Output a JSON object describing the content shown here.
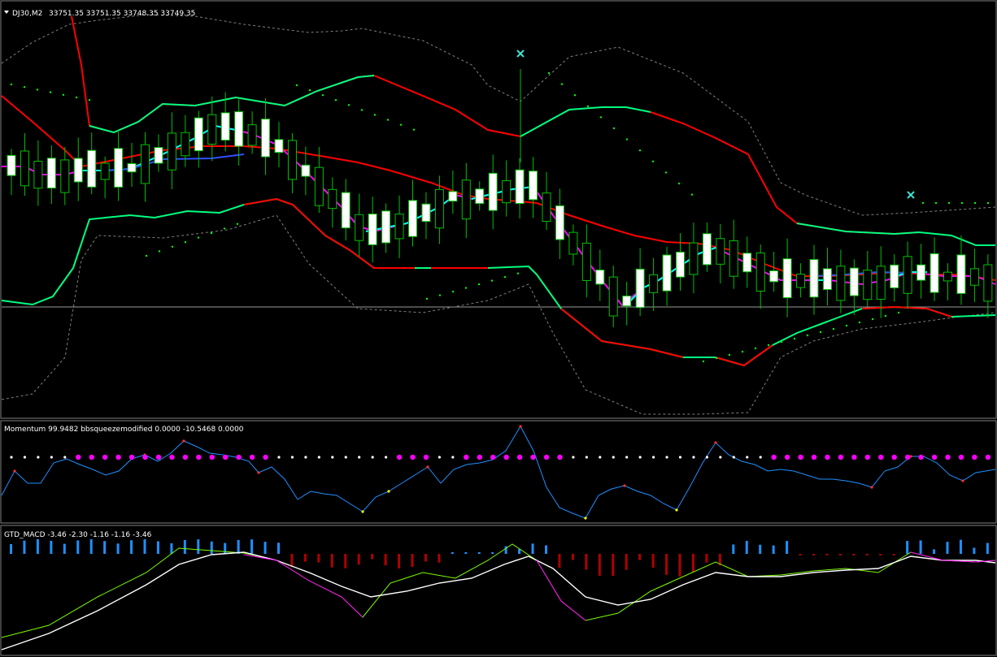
{
  "main_pane": {
    "symbol": "DJ30,M2",
    "quote": "33751.35 33751.35 33748.35 33749.35"
  },
  "momentum_pane": {
    "label": "Momentum 99.9482  bbsqueezemodified 0.0000 -10.5468 0.0000"
  },
  "macd_pane": {
    "label": "GTD_MACD -3.46 -2.30 -1.16 -1.16 -3.46"
  },
  "colors": {
    "background": "#000000",
    "bull_candle": "#ffffff",
    "candle_outline": "#00c000",
    "bb_inner_red": "#ff0000",
    "bb_inner_green": "#00ff80",
    "bb_outer_dashed": "#808080",
    "sar_dots": "#00ff00",
    "fast_ma_magenta": "#ff00ff",
    "fast_ma_cyan": "#00ffff",
    "signal_cross": "#40e0d0",
    "momentum_line": "#1e90ff",
    "squeeze_on": "#ff00ff",
    "squeeze_off": "#ffffff",
    "macd_hist_up": "#1e90ff",
    "macd_hist_down": "#b00000",
    "macd_line": "#ffffff",
    "macd_signal": "#7cfc00"
  },
  "chart_data": {
    "type": "candlestick",
    "symbol": "DJ30",
    "timeframe": "M2",
    "candles_count": 74,
    "bands": "bollinger_inner_and_outer",
    "signal_markers": [
      "x",
      "x"
    ],
    "momentum": {
      "current": 99.9482
    },
    "bbsqueeze": [
      0.0,
      -10.5468,
      0.0
    ],
    "gtd_macd": [
      -3.46,
      -2.3,
      -1.16,
      -1.16,
      -3.46
    ]
  }
}
